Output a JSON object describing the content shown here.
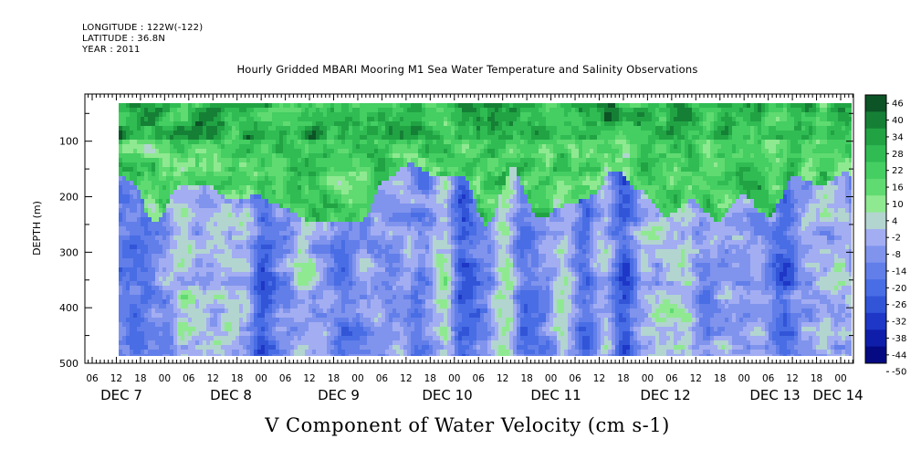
{
  "header": {
    "longitude": "LONGITUDE : 122W(-122)",
    "latitude": "LATITUDE : 36.8N",
    "year": "YEAR : 2011"
  },
  "chart_data": {
    "type": "heatmap",
    "title": "Hourly Gridded MBARI Mooring M1 Sea Water Temperature and Salinity Observations",
    "xlabel": "V Component of Water Velocity (cm s-1)",
    "ylabel": "DEPTH (m)",
    "y_range": [
      500,
      15
    ],
    "y_reversed": true,
    "y_ticks": [
      100,
      200,
      300,
      400,
      500
    ],
    "data_depth_range": [
      15,
      490
    ],
    "x_range_hours": [
      0,
      198
    ],
    "hour_tick_labels": [
      "06",
      "12",
      "18",
      "00",
      "06",
      "12",
      "18",
      "00",
      "06",
      "12",
      "18",
      "00",
      "06",
      "12",
      "18",
      "00",
      "06",
      "12",
      "18",
      "00",
      "06",
      "12",
      "18",
      "00",
      "06",
      "12",
      "18",
      "00",
      "06",
      "12",
      "18",
      "00"
    ],
    "day_labels": [
      "DEC  7",
      "DEC  8",
      "DEC  9",
      "DEC 10",
      "DEC 11",
      "DEC 12",
      "DEC 13",
      "DEC 14"
    ],
    "colorbar": {
      "levels": [
        46,
        40,
        34,
        28,
        22,
        16,
        10,
        4,
        -2,
        -8,
        -14,
        -20,
        -26,
        -32,
        -38,
        -44,
        -50
      ],
      "label_texts": [
        "46",
        "40",
        "34",
        "28",
        "22",
        "16",
        "10",
        "4",
        "-2",
        "-8",
        "-14",
        "-20",
        "-26",
        "-32",
        "-38",
        "-44",
        "-50"
      ]
    },
    "colors": {
      "strong_positive": "#0a3a1a",
      "positive": "#38c85a",
      "weak_positive": "#a8eca0",
      "weak_negative": "#a8aef0",
      "negative": "#5878e0",
      "strong_negative": "#00007a"
    },
    "upper_layer": {
      "description_depth": [
        15,
        190
      ],
      "mean_value": 18,
      "range": [
        4,
        40
      ]
    },
    "lower_layer": {
      "description_depth": [
        190,
        490
      ],
      "mean_value": -12,
      "range": [
        -32,
        16
      ]
    }
  }
}
